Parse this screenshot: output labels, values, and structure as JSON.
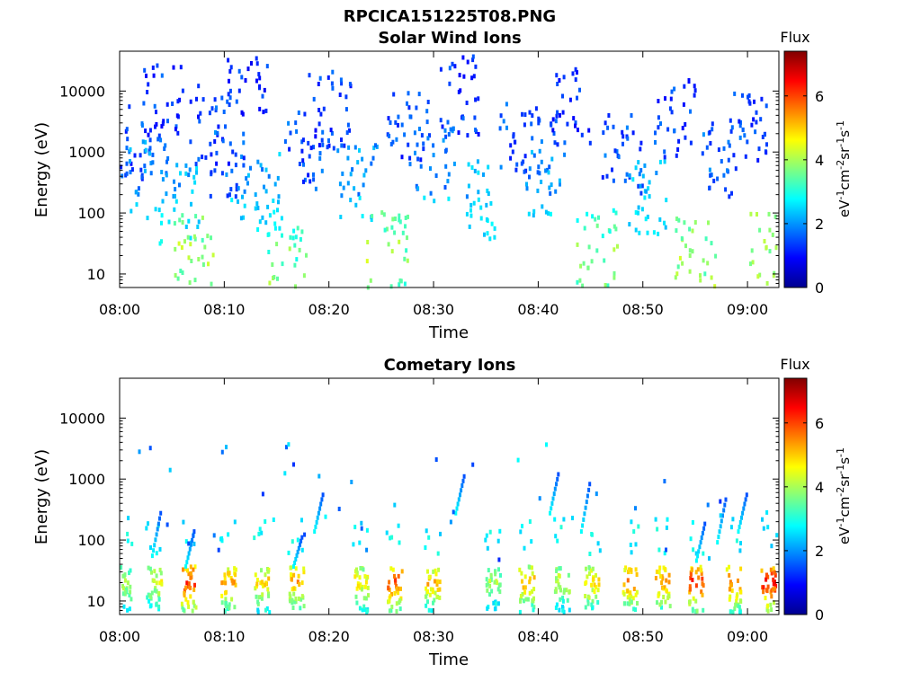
{
  "figure": {
    "title": "RPCICA151225T08.PNG"
  },
  "colormap": {
    "name": "jet",
    "stops": [
      "#00008f",
      "#0000ff",
      "#0080ff",
      "#00ffff",
      "#80ff80",
      "#ffff00",
      "#ff8000",
      "#ff0000",
      "#800000"
    ]
  },
  "chart_data": [
    {
      "type": "heatmap",
      "title": "Solar Wind Ions",
      "xlabel": "Time",
      "ylabel": "Energy (eV)",
      "x_ticks": [
        "08:00",
        "08:10",
        "08:20",
        "08:30",
        "08:40",
        "08:50",
        "09:00"
      ],
      "x_range_minutes": [
        0,
        63
      ],
      "y_scale": "log",
      "y_ticks": [
        "10",
        "100",
        "1000",
        "10000"
      ],
      "y_range": [
        6,
        45000
      ],
      "colorbar": {
        "label": "Flux",
        "unit": "eV-1cm-2sr-1s-1",
        "ticks": [
          "0",
          "2",
          "4",
          "6"
        ],
        "range": [
          0,
          7.4
        ]
      },
      "clusters": [
        {
          "t": 1.0,
          "e": 1500,
          "f": 1.4
        },
        {
          "t": 2.5,
          "e": 400,
          "f": 2.0
        },
        {
          "t": 4.0,
          "e": 7000,
          "f": 1.3
        },
        {
          "t": 5.5,
          "e": 150,
          "f": 2.2
        },
        {
          "t": 7.0,
          "e": 30,
          "f": 3.5
        },
        {
          "t": 8.5,
          "e": 3000,
          "f": 1.4
        },
        {
          "t": 10.5,
          "e": 700,
          "f": 1.6
        },
        {
          "t": 12.0,
          "e": 20000,
          "f": 1.2
        },
        {
          "t": 13.5,
          "e": 250,
          "f": 2.1
        },
        {
          "t": 16.0,
          "e": 15,
          "f": 3.0
        },
        {
          "t": 17.5,
          "e": 1200,
          "f": 1.5
        },
        {
          "t": 20.0,
          "e": 5000,
          "f": 1.3
        },
        {
          "t": 22.5,
          "e": 350,
          "f": 2.0
        },
        {
          "t": 25.5,
          "e": 25,
          "f": 3.4
        },
        {
          "t": 27.5,
          "e": 2500,
          "f": 1.4
        },
        {
          "t": 30.0,
          "e": 600,
          "f": 1.8
        },
        {
          "t": 32.5,
          "e": 9000,
          "f": 1.3
        },
        {
          "t": 35.0,
          "e": 180,
          "f": 2.2
        },
        {
          "t": 38.0,
          "e": 1800,
          "f": 1.5
        },
        {
          "t": 40.5,
          "e": 400,
          "f": 2.0
        },
        {
          "t": 43.0,
          "e": 6000,
          "f": 1.3
        },
        {
          "t": 45.5,
          "e": 30,
          "f": 3.2
        },
        {
          "t": 48.0,
          "e": 1000,
          "f": 1.5
        },
        {
          "t": 50.5,
          "e": 200,
          "f": 2.2
        },
        {
          "t": 53.0,
          "e": 4000,
          "f": 1.4
        },
        {
          "t": 55.0,
          "e": 20,
          "f": 3.6
        },
        {
          "t": 57.5,
          "e": 800,
          "f": 1.6
        },
        {
          "t": 60.0,
          "e": 2500,
          "f": 1.4
        },
        {
          "t": 62.0,
          "e": 25,
          "f": 3.7
        }
      ]
    },
    {
      "type": "heatmap",
      "title": "Cometary Ions",
      "xlabel": "Time",
      "ylabel": "Energy (eV)",
      "x_ticks": [
        "08:00",
        "08:10",
        "08:20",
        "08:30",
        "08:40",
        "08:50",
        "09:00"
      ],
      "x_range_minutes": [
        0,
        63
      ],
      "y_scale": "log",
      "y_ticks": [
        "10",
        "100",
        "1000",
        "10000"
      ],
      "y_range": [
        6,
        45000
      ],
      "colorbar": {
        "label": "Flux",
        "unit": "eV-1cm-2sr-1s-1",
        "ticks": [
          "0",
          "2",
          "4",
          "6"
        ],
        "range": [
          0,
          7.4
        ]
      },
      "bursts": [
        {
          "t": 0.3,
          "f": 4.2
        },
        {
          "t": 3.2,
          "f": 4.5
        },
        {
          "t": 6.5,
          "f": 6.3
        },
        {
          "t": 10.3,
          "f": 5.4
        },
        {
          "t": 13.5,
          "f": 5.0
        },
        {
          "t": 16.8,
          "f": 5.3
        },
        {
          "t": 23.0,
          "f": 4.8
        },
        {
          "t": 26.2,
          "f": 6.0
        },
        {
          "t": 29.8,
          "f": 5.2
        },
        {
          "t": 35.6,
          "f": 4.0
        },
        {
          "t": 38.8,
          "f": 5.2
        },
        {
          "t": 42.2,
          "f": 4.4
        },
        {
          "t": 45.0,
          "f": 5.0
        },
        {
          "t": 48.7,
          "f": 5.6
        },
        {
          "t": 51.8,
          "f": 5.5
        },
        {
          "t": 55.0,
          "f": 6.2
        },
        {
          "t": 58.6,
          "f": 5.8
        },
        {
          "t": 61.9,
          "f": 6.5
        }
      ],
      "tails": [
        {
          "t": 3.0,
          "e": [
            60,
            300
          ]
        },
        {
          "t": 6.2,
          "e": [
            40,
            150
          ]
        },
        {
          "t": 16.5,
          "e": [
            40,
            120
          ]
        },
        {
          "t": 18.5,
          "e": [
            150,
            600
          ]
        },
        {
          "t": 32.0,
          "e": [
            300,
            1200
          ]
        },
        {
          "t": 41.0,
          "e": [
            300,
            1300
          ]
        },
        {
          "t": 44.0,
          "e": [
            150,
            900
          ]
        },
        {
          "t": 55.0,
          "e": [
            50,
            200
          ]
        },
        {
          "t": 57.0,
          "e": [
            100,
            500
          ]
        },
        {
          "t": 59.0,
          "e": [
            150,
            600
          ]
        }
      ]
    }
  ]
}
